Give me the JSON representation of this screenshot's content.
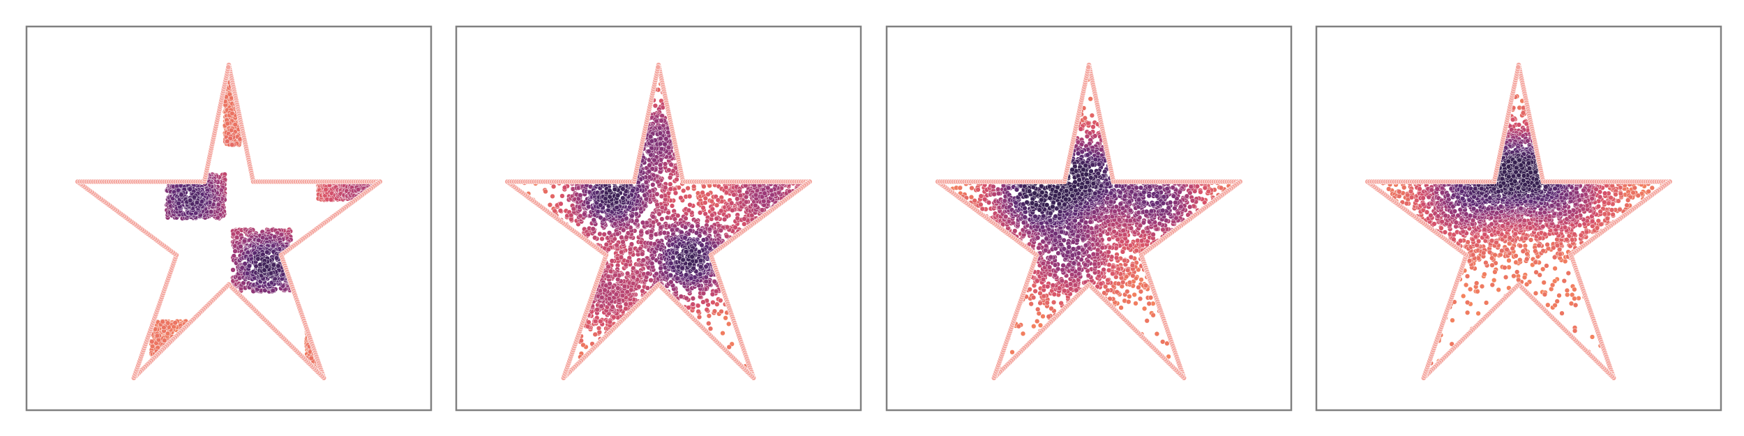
{
  "figure": {
    "panel_count": 4,
    "frame_color": "#808080",
    "background_color": "#ffffff"
  },
  "chart_data": [
    {
      "type": "scatter",
      "title": "",
      "xlabel": "",
      "ylabel": "",
      "axes_visible": false,
      "grid": false,
      "legend": "none",
      "xlim": [
        0,
        1
      ],
      "ylim": [
        0,
        1
      ],
      "boundary": {
        "shape": "five-pointed-star",
        "vertices": [
          [
            0.5,
            0.918
          ],
          [
            0.563,
            0.6
          ],
          [
            0.89,
            0.6
          ],
          [
            0.635,
            0.4
          ],
          [
            0.745,
            0.065
          ],
          [
            0.5,
            0.32
          ],
          [
            0.255,
            0.065
          ],
          [
            0.365,
            0.4
          ],
          [
            0.11,
            0.6
          ],
          [
            0.437,
            0.6
          ]
        ],
        "marker_color": "#f4a7a0"
      },
      "colormap": [
        "#f5845e",
        "#d5506a",
        "#9e3a78",
        "#5f2a74",
        "#35204f"
      ],
      "particles": {
        "distribution": "checkerboard",
        "blobs": [
          {
            "x": 0.4,
            "y": 0.555,
            "weight": 0.9
          },
          {
            "x": 0.6,
            "y": 0.37,
            "weight": 1.0
          },
          {
            "x": 0.85,
            "y": 0.57,
            "weight": 0.4
          }
        ],
        "cells": [
          {
            "x0": 0.34,
            "x1": 0.49,
            "y0": 0.5,
            "y1": 0.62
          },
          {
            "x0": 0.51,
            "x1": 0.66,
            "y0": 0.3,
            "y1": 0.47
          },
          {
            "x0": 0.49,
            "x1": 0.53,
            "y0": 0.7,
            "y1": 0.88
          },
          {
            "x0": 0.73,
            "x1": 0.89,
            "y0": 0.55,
            "y1": 0.61
          },
          {
            "x0": 0.3,
            "x1": 0.45,
            "y0": 0.1,
            "y1": 0.22
          },
          {
            "x0": 0.7,
            "x1": 0.76,
            "y0": 0.08,
            "y1": 0.22
          }
        ],
        "count": 2600
      }
    },
    {
      "type": "scatter",
      "title": "",
      "xlabel": "",
      "ylabel": "",
      "axes_visible": false,
      "grid": false,
      "legend": "none",
      "xlim": [
        0,
        1
      ],
      "ylim": [
        0,
        1
      ],
      "boundary": {
        "shape": "five-pointed-star",
        "vertices": [
          [
            0.5,
            0.918
          ],
          [
            0.563,
            0.6
          ],
          [
            0.89,
            0.6
          ],
          [
            0.635,
            0.4
          ],
          [
            0.745,
            0.065
          ],
          [
            0.5,
            0.32
          ],
          [
            0.255,
            0.065
          ],
          [
            0.365,
            0.4
          ],
          [
            0.11,
            0.6
          ],
          [
            0.437,
            0.6
          ]
        ],
        "marker_color": "#f4a7a0"
      },
      "colormap": [
        "#f5845e",
        "#d5506a",
        "#9e3a78",
        "#5f2a74",
        "#35204f"
      ],
      "particles": {
        "distribution": "diffusing",
        "blobs": [
          {
            "x": 0.38,
            "y": 0.565,
            "weight": 1.0
          },
          {
            "x": 0.58,
            "y": 0.39,
            "weight": 1.0
          },
          {
            "x": 0.5,
            "y": 0.72,
            "weight": 0.6
          },
          {
            "x": 0.78,
            "y": 0.57,
            "weight": 0.5
          },
          {
            "x": 0.36,
            "y": 0.3,
            "weight": 0.4
          }
        ],
        "count": 2500
      }
    },
    {
      "type": "scatter",
      "title": "",
      "xlabel": "",
      "ylabel": "",
      "axes_visible": false,
      "grid": false,
      "legend": "none",
      "xlim": [
        0,
        1
      ],
      "ylim": [
        0,
        1
      ],
      "boundary": {
        "shape": "five-pointed-star",
        "vertices": [
          [
            0.5,
            0.918
          ],
          [
            0.563,
            0.6
          ],
          [
            0.89,
            0.6
          ],
          [
            0.635,
            0.4
          ],
          [
            0.745,
            0.065
          ],
          [
            0.5,
            0.32
          ],
          [
            0.255,
            0.065
          ],
          [
            0.365,
            0.4
          ],
          [
            0.11,
            0.6
          ],
          [
            0.437,
            0.6
          ]
        ],
        "marker_color": "#f4a7a0"
      },
      "colormap": [
        "#f5845e",
        "#d5506a",
        "#9e3a78",
        "#5f2a74",
        "#35204f"
      ],
      "particles": {
        "distribution": "spreading",
        "blobs": [
          {
            "x": 0.36,
            "y": 0.57,
            "weight": 1.0
          },
          {
            "x": 0.5,
            "y": 0.62,
            "weight": 0.9
          },
          {
            "x": 0.68,
            "y": 0.55,
            "weight": 0.7
          },
          {
            "x": 0.45,
            "y": 0.4,
            "weight": 0.6
          }
        ],
        "count": 2400
      }
    },
    {
      "type": "scatter",
      "title": "",
      "xlabel": "",
      "ylabel": "",
      "axes_visible": false,
      "grid": false,
      "legend": "none",
      "xlim": [
        0,
        1
      ],
      "ylim": [
        0,
        1
      ],
      "boundary": {
        "shape": "five-pointed-star",
        "vertices": [
          [
            0.5,
            0.918
          ],
          [
            0.563,
            0.6
          ],
          [
            0.89,
            0.6
          ],
          [
            0.635,
            0.4
          ],
          [
            0.745,
            0.065
          ],
          [
            0.5,
            0.32
          ],
          [
            0.255,
            0.065
          ],
          [
            0.365,
            0.4
          ],
          [
            0.11,
            0.6
          ],
          [
            0.437,
            0.6
          ]
        ],
        "marker_color": "#f4a7a0"
      },
      "colormap": [
        "#f5845e",
        "#d5506a",
        "#9e3a78",
        "#5f2a74",
        "#35204f"
      ],
      "particles": {
        "distribution": "settling",
        "blobs": [
          {
            "x": 0.5,
            "y": 0.63,
            "weight": 1.0
          },
          {
            "x": 0.36,
            "y": 0.57,
            "weight": 0.7
          },
          {
            "x": 0.62,
            "y": 0.57,
            "weight": 0.5
          }
        ],
        "count": 2400
      }
    }
  ]
}
